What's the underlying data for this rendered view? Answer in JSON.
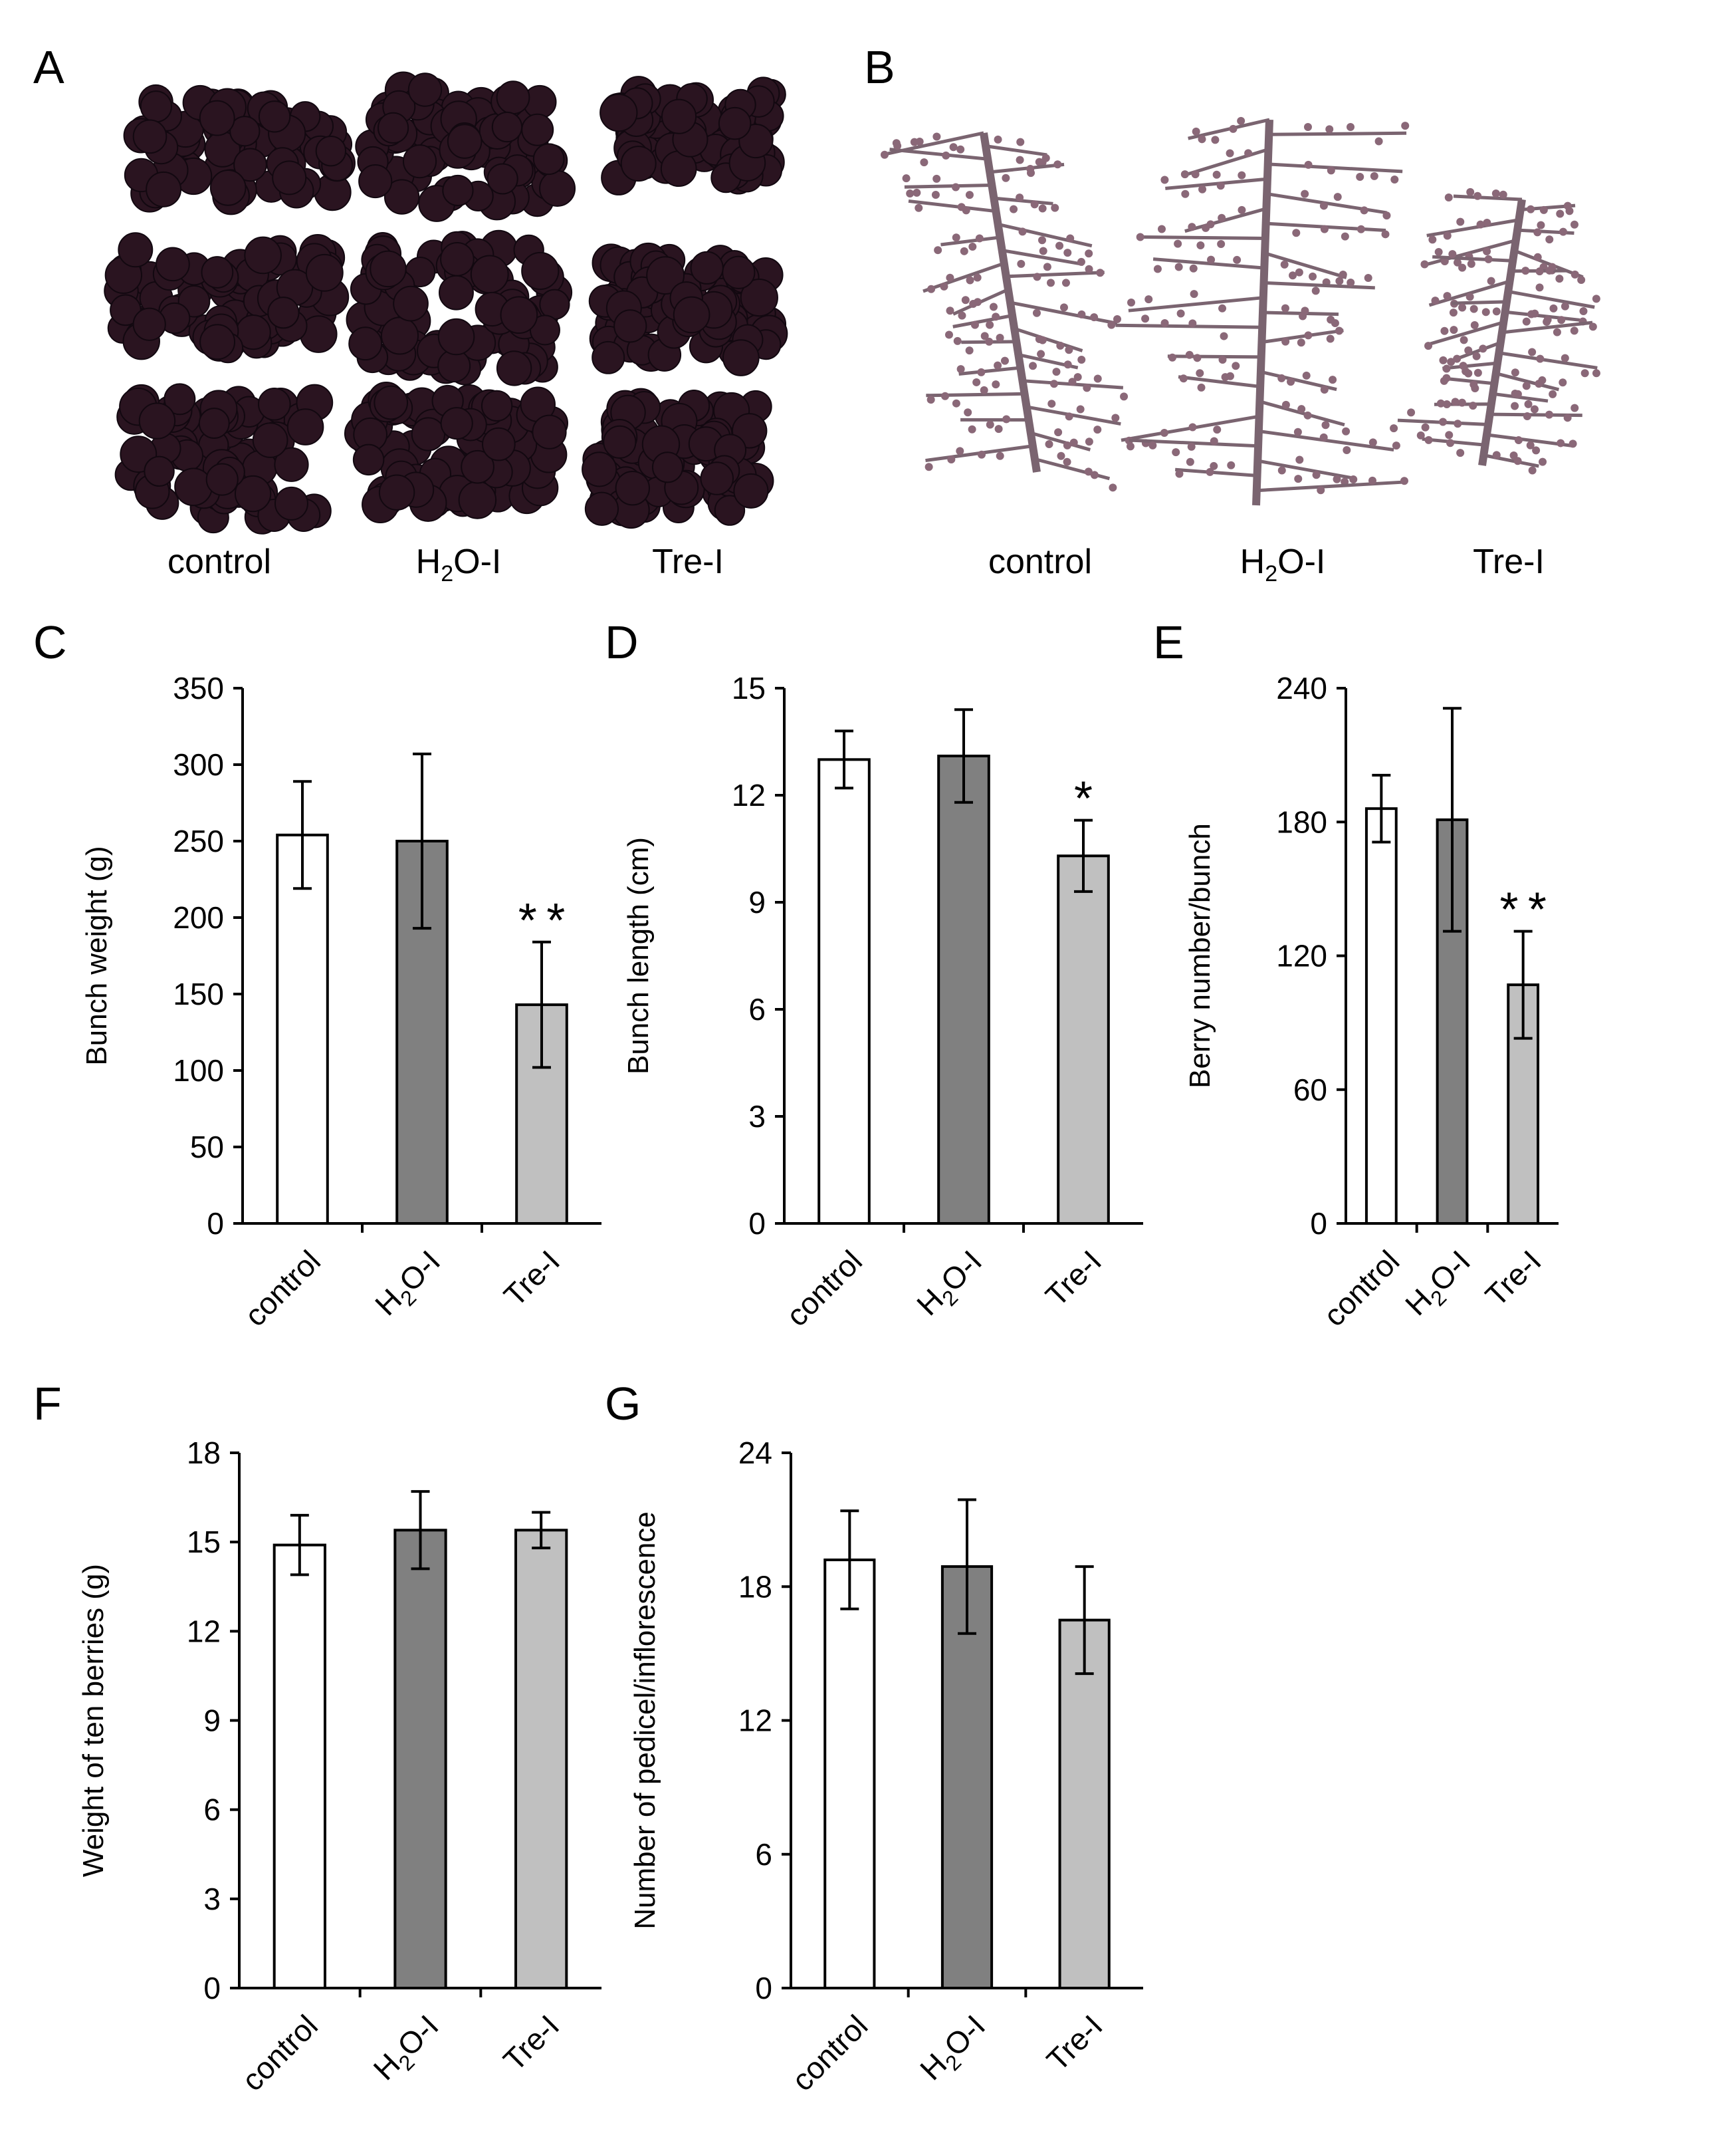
{
  "figure": {
    "photo_a": {
      "letter": "A",
      "labels": [
        "control",
        "H2O-I",
        "Tre-I"
      ],
      "description_icon": "grape-bunch-photo"
    },
    "photo_b": {
      "letter": "B",
      "labels": [
        "control",
        "H2O-I",
        "Tre-I"
      ],
      "description_icon": "inflorescence-photo"
    }
  },
  "colors": {
    "control": "#ffffff",
    "H2O-I": "#808080",
    "Tre-I": "#c0c0c0",
    "grape": "#2a1420",
    "stem": "#7a6470"
  },
  "chart_data": [
    {
      "letter": "C",
      "type": "bar",
      "categories": [
        "control",
        "H2O-I",
        "Tre-I"
      ],
      "values": [
        254,
        250,
        143
      ],
      "errors": [
        35,
        57,
        41
      ],
      "significance": [
        "",
        "",
        "**"
      ],
      "ylabel": "Bunch weight (g)",
      "ylim": [
        0,
        350
      ],
      "yticks": [
        0,
        50,
        100,
        150,
        200,
        250,
        300,
        350
      ]
    },
    {
      "letter": "D",
      "type": "bar",
      "categories": [
        "control",
        "H2O-I",
        "Tre-I"
      ],
      "values": [
        13.0,
        13.1,
        10.3
      ],
      "errors": [
        0.8,
        1.3,
        1.0
      ],
      "significance": [
        "",
        "",
        "*"
      ],
      "ylabel": "Bunch length (cm)",
      "ylim": [
        0,
        15
      ],
      "yticks": [
        0,
        3,
        6,
        9,
        12,
        15
      ]
    },
    {
      "letter": "E",
      "type": "bar",
      "categories": [
        "control",
        "H2O-I",
        "Tre-I"
      ],
      "values": [
        186,
        181,
        107
      ],
      "errors": [
        15,
        50,
        24
      ],
      "significance": [
        "",
        "",
        "**"
      ],
      "ylabel": "Berry number/bunch",
      "ylim": [
        0,
        240
      ],
      "yticks": [
        0,
        60,
        120,
        180,
        240
      ]
    },
    {
      "letter": "F",
      "type": "bar",
      "categories": [
        "control",
        "H2O-I",
        "Tre-I"
      ],
      "values": [
        14.9,
        15.4,
        15.4
      ],
      "errors": [
        1.0,
        1.3,
        0.6
      ],
      "significance": [
        "",
        "",
        ""
      ],
      "ylabel": "Weight of ten berries (g)",
      "ylim": [
        0,
        18
      ],
      "yticks": [
        0,
        3,
        6,
        9,
        12,
        15,
        18
      ]
    },
    {
      "letter": "G",
      "type": "bar",
      "categories": [
        "control",
        "H2O-I",
        "Tre-I"
      ],
      "values": [
        19.2,
        18.9,
        16.5
      ],
      "errors": [
        2.2,
        3.0,
        2.4
      ],
      "significance": [
        "",
        "",
        ""
      ],
      "ylabel": "Number of pedicel/inflorescence",
      "ylim": [
        0,
        24
      ],
      "yticks": [
        0,
        6,
        12,
        18,
        24
      ]
    }
  ]
}
